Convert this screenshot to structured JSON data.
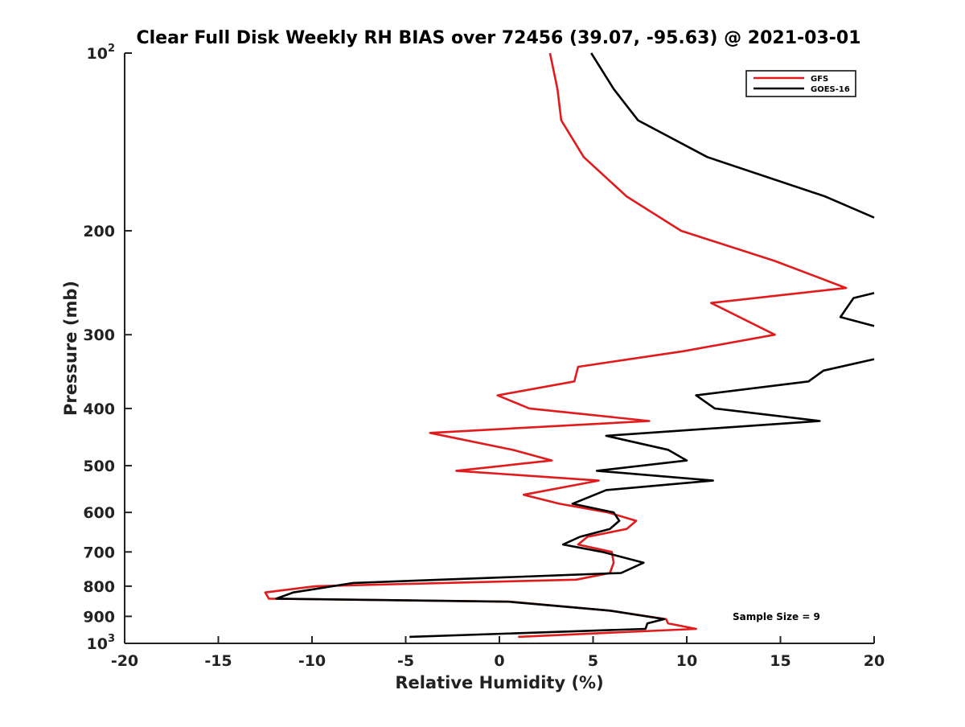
{
  "chart_data": {
    "type": "line",
    "title": "Clear Full Disk Weekly RH BIAS over 72456 (39.07, -95.63) @ 2021-03-01",
    "xlabel": "Relative Humidity (%)",
    "ylabel": "Pressure (mb)",
    "xlim": [
      -20,
      20
    ],
    "ylim": [
      100,
      1000
    ],
    "yscale": "log",
    "y_reversed": true,
    "x_ticks": [
      "-20",
      "-15",
      "-10",
      "-5",
      "0",
      "5",
      "10",
      "15",
      "20"
    ],
    "x_tick_values": [
      -20,
      -15,
      -10,
      -5,
      0,
      5,
      10,
      15,
      20
    ],
    "y_ticks": [
      {
        "value": 100,
        "base": "10",
        "exp": "2"
      },
      {
        "value": 200,
        "label": "200"
      },
      {
        "value": 300,
        "label": "300"
      },
      {
        "value": 400,
        "label": "400"
      },
      {
        "value": 500,
        "label": "500"
      },
      {
        "value": 600,
        "label": "600"
      },
      {
        "value": 700,
        "label": "700"
      },
      {
        "value": 800,
        "label": "800"
      },
      {
        "value": 900,
        "label": "900"
      },
      {
        "value": 1000,
        "base": "10",
        "exp": "3"
      }
    ],
    "legend": {
      "placement": "top-right"
    },
    "series": [
      {
        "name": "GFS",
        "color": "#e31a1c",
        "points": [
          [
            2.7,
            100
          ],
          [
            3.1,
            115
          ],
          [
            3.3,
            130
          ],
          [
            4.5,
            150
          ],
          [
            6.8,
            175
          ],
          [
            9.7,
            200
          ],
          [
            14.7,
            225
          ],
          [
            18.5,
            250
          ],
          [
            11.3,
            265
          ],
          [
            14.7,
            300
          ],
          [
            9.8,
            320
          ],
          [
            4.2,
            340
          ],
          [
            4.0,
            360
          ],
          [
            -0.1,
            380
          ],
          [
            1.6,
            400
          ],
          [
            8.0,
            420
          ],
          [
            -3.7,
            440
          ],
          [
            0.7,
            470
          ],
          [
            2.8,
            490
          ],
          [
            -2.3,
            510
          ],
          [
            5.3,
            530
          ],
          [
            1.3,
            560
          ],
          [
            3.2,
            580
          ],
          [
            5.8,
            600
          ],
          [
            7.3,
            620
          ],
          [
            6.8,
            640
          ],
          [
            4.7,
            660
          ],
          [
            4.2,
            680
          ],
          [
            6.0,
            700
          ],
          [
            6.1,
            730
          ],
          [
            5.9,
            760
          ],
          [
            4.1,
            780
          ],
          [
            -9.8,
            800
          ],
          [
            -12.5,
            820
          ],
          [
            -12.3,
            840
          ],
          [
            0.6,
            850
          ],
          [
            5.9,
            880
          ],
          [
            8.9,
            910
          ],
          [
            9.0,
            925
          ],
          [
            10.5,
            945
          ],
          [
            1.0,
            975
          ]
        ]
      },
      {
        "name": "GOES-16",
        "color": "#000000",
        "points": [
          [
            4.9,
            100
          ],
          [
            6.1,
            115
          ],
          [
            7.4,
            130
          ],
          [
            11.1,
            150
          ],
          [
            17.4,
            175
          ],
          [
            20.0,
            190
          ],
          [
            null,
            null
          ],
          [
            20.0,
            255
          ],
          [
            18.9,
            260
          ],
          [
            18.2,
            280
          ],
          [
            20.0,
            290
          ],
          [
            null,
            null
          ],
          [
            20.0,
            330
          ],
          [
            17.3,
            345
          ],
          [
            16.5,
            360
          ],
          [
            10.5,
            380
          ],
          [
            11.5,
            400
          ],
          [
            17.1,
            420
          ],
          [
            5.7,
            445
          ],
          [
            9.0,
            470
          ],
          [
            10.0,
            490
          ],
          [
            5.2,
            510
          ],
          [
            11.4,
            530
          ],
          [
            5.7,
            550
          ],
          [
            3.9,
            580
          ],
          [
            6.1,
            600
          ],
          [
            6.4,
            620
          ],
          [
            5.9,
            640
          ],
          [
            4.3,
            660
          ],
          [
            3.4,
            680
          ],
          [
            5.5,
            700
          ],
          [
            7.7,
            730
          ],
          [
            6.5,
            760
          ],
          [
            -7.8,
            790
          ],
          [
            -11.0,
            820
          ],
          [
            -11.9,
            840
          ],
          [
            0.5,
            850
          ],
          [
            5.9,
            880
          ],
          [
            8.8,
            910
          ],
          [
            7.9,
            925
          ],
          [
            7.8,
            945
          ],
          [
            -4.8,
            975
          ]
        ]
      }
    ],
    "annotation": "Sample Size = 9"
  }
}
